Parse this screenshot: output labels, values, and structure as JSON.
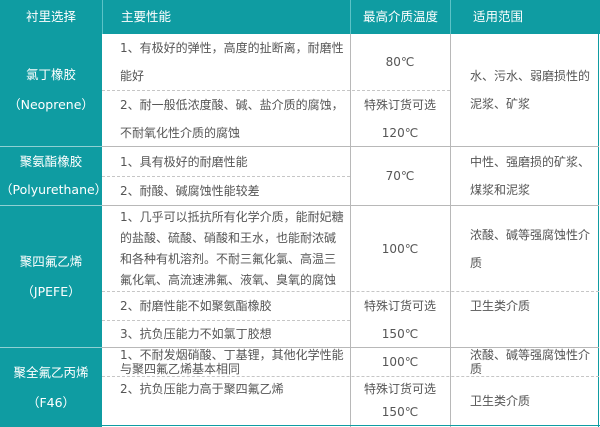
{
  "colors": {
    "header_bg": "#0f9ca2",
    "header_text": "#ffffff",
    "body_text": "#555555"
  },
  "header": [
    "衬里选择",
    "主要性能",
    "最高介质温度",
    "适用范围"
  ],
  "rows": [
    {
      "lining": [
        "氯丁橡胶",
        "（Neoprene）"
      ],
      "props": [
        "1、有极好的弹性，高度的扯断离，耐磨性能好",
        "2、耐一般低浓度酸、碱、盐介质的腐蚀，不耐氧化性介质的腐蚀"
      ],
      "temp": [
        "80℃",
        "特殊订货可选",
        "120℃"
      ],
      "scope": [
        "水、污水、弱磨损性的泥浆、矿浆"
      ]
    },
    {
      "lining": [
        "聚氨酯橡胶",
        "（Polyurethane）"
      ],
      "props": [
        "1、具有极好的耐磨性能",
        "2、耐酸、碱腐蚀性能较差"
      ],
      "temp": [
        "70℃"
      ],
      "scope": [
        "中性、强磨损的矿浆、煤浆和泥浆"
      ]
    },
    {
      "lining": [
        "聚四氟乙烯",
        "（JPEFE）"
      ],
      "props": [
        "1、几乎可以抵抗所有化学介质，能耐妃糖的盐酸、硫酸、硝酸和王水，也能耐浓碱和各种有机溶剂。不耐三氟化氯、高温三氟化氧、高流速沸氟、液氧、臭氧的腐蚀",
        "2、耐磨性能不如聚氨酯橡胶",
        "3、抗负压能力不如氯丁胶想"
      ],
      "temp": [
        "100℃",
        "特殊订货可选",
        "150℃"
      ],
      "scope": [
        "浓酸、碱等强腐蚀性介质",
        "卫生类介质"
      ]
    },
    {
      "lining": [
        "聚全氟乙丙烯",
        "（F46）"
      ],
      "props": [
        "1、不耐发烟硝酸、丁基锂，其他化学性能与聚四氟乙烯基本相同",
        "2、抗负压能力高于聚四氟乙烯"
      ],
      "temp": [
        "100℃",
        "特殊订货可选",
        "150℃"
      ],
      "scope": [
        "浓酸、碱等强腐蚀性介质",
        "卫生类介质"
      ]
    }
  ]
}
